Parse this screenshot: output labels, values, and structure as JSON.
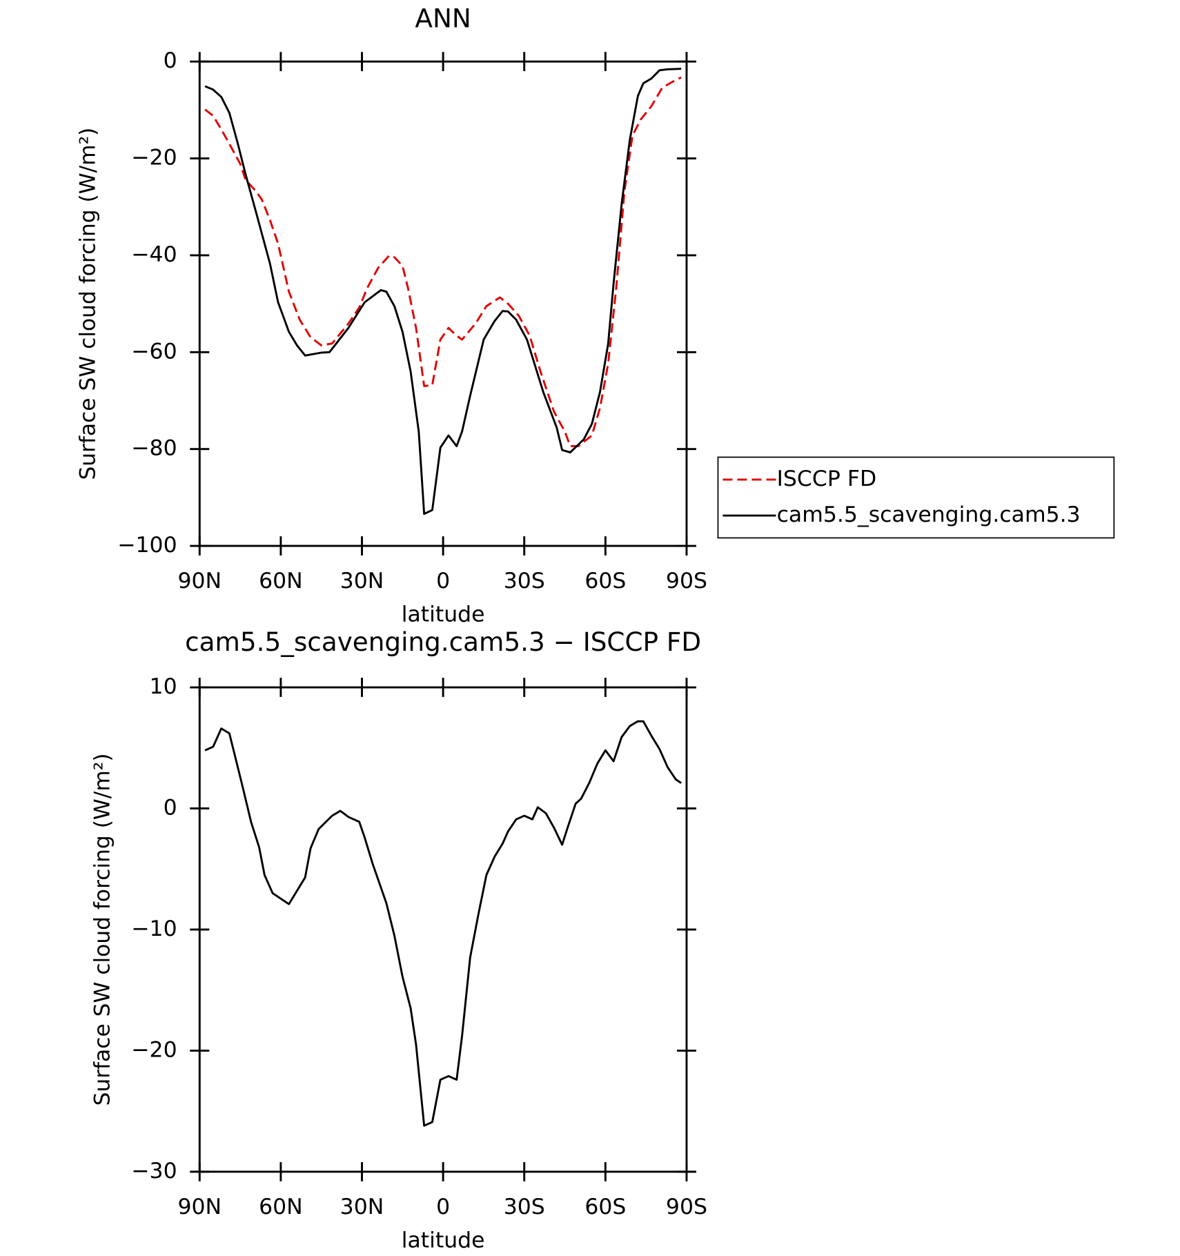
{
  "chart_data": [
    {
      "type": "line",
      "title": "ANN",
      "xlabel": "latitude",
      "ylabel": "Surface SW cloud forcing (W/m²)",
      "xlim": [
        90,
        -90
      ],
      "xticks": [
        {
          "value": 90,
          "label": "90N"
        },
        {
          "value": 60,
          "label": "60N"
        },
        {
          "value": 30,
          "label": "30N"
        },
        0,
        {
          "value": -30,
          "label": "30S"
        },
        {
          "value": -60,
          "label": "60S"
        },
        {
          "value": -90,
          "label": "90S"
        }
      ],
      "ylim": [
        -100,
        0
      ],
      "yticks": [
        0,
        {
          "value": -20,
          "label": "−20"
        },
        {
          "value": -40,
          "label": "−40"
        },
        {
          "value": -60,
          "label": "−60"
        },
        {
          "value": -80,
          "label": "−80"
        },
        {
          "value": -100,
          "label": "−100"
        }
      ],
      "legend": "outside right",
      "series": [
        {
          "name": "ISCCP FD",
          "color": "#e00000",
          "style": "dashed",
          "x": [
            88,
            85,
            82,
            79,
            75,
            73,
            69,
            67,
            64,
            61,
            57,
            53,
            49,
            45,
            41,
            35,
            31,
            28,
            24,
            20,
            18,
            15,
            13,
            10,
            7,
            4,
            1,
            -2,
            -5,
            -7,
            -12,
            -16,
            -21,
            -24,
            -28,
            -32,
            -36,
            -41,
            -45,
            -47,
            -50,
            -55,
            -58,
            -61,
            -64,
            -67,
            -70,
            -73,
            -77,
            -81,
            -86,
            -88
          ],
          "values": [
            -9.9,
            -11.2,
            -14,
            -17,
            -21.1,
            -24.4,
            -26.9,
            -28.5,
            -32.7,
            -37.6,
            -47.5,
            -53.3,
            -56.9,
            -58.6,
            -58.2,
            -54.1,
            -50.8,
            -46.7,
            -42.6,
            -40.1,
            -40.4,
            -42.2,
            -46.7,
            -55,
            -67,
            -66.8,
            -57.4,
            -55,
            -56.6,
            -57.4,
            -54.1,
            -50.5,
            -48.7,
            -50,
            -52.5,
            -56.6,
            -64,
            -72.3,
            -76.4,
            -79.4,
            -79.4,
            -77.2,
            -71.5,
            -62.4,
            -46.7,
            -26.9,
            -15.3,
            -12,
            -9.2,
            -5.4,
            -3.8,
            -3.3
          ]
        },
        {
          "name": "cam5.5_scavenging.cam5.3",
          "color": "#000000",
          "style": "solid",
          "x": [
            88,
            85,
            82,
            79,
            76,
            73,
            69,
            64,
            61,
            57,
            54,
            51,
            45,
            42,
            35,
            29,
            23,
            21,
            18,
            15,
            12,
            9,
            7,
            4,
            1,
            -2,
            -5,
            -7,
            -10,
            -15,
            -19,
            -22,
            -24,
            -27,
            -31,
            -37,
            -42,
            -44,
            -47,
            -52,
            -55,
            -58,
            -61,
            -63,
            -66,
            -69,
            -72,
            -74,
            -77,
            -80,
            -83,
            -88
          ],
          "values": [
            -5.1,
            -5.8,
            -7.3,
            -10.6,
            -16.7,
            -23.3,
            -31.4,
            -41.7,
            -49.7,
            -55.8,
            -58.6,
            -60.7,
            -60.1,
            -60,
            -55,
            -49.7,
            -47.2,
            -47.5,
            -50.5,
            -55.8,
            -64,
            -76.4,
            -93.4,
            -92.6,
            -79.7,
            -77.2,
            -79.4,
            -76.4,
            -69,
            -57.4,
            -53.6,
            -51.5,
            -51.6,
            -53.3,
            -57.4,
            -68.2,
            -75.6,
            -80.2,
            -80.7,
            -78,
            -74.8,
            -68.2,
            -58.3,
            -45.9,
            -29.4,
            -16.2,
            -7.1,
            -4.5,
            -3.5,
            -1.8,
            -1.6,
            -1.5
          ]
        }
      ]
    },
    {
      "type": "line",
      "title": "cam5.5_scavenging.cam5.3 − ISCCP FD",
      "xlabel": "latitude",
      "ylabel": "Surface SW cloud forcing (W/m²)",
      "xlim": [
        90,
        -90
      ],
      "xticks": [
        {
          "value": 90,
          "label": "90N"
        },
        {
          "value": 60,
          "label": "60N"
        },
        {
          "value": 30,
          "label": "30N"
        },
        0,
        {
          "value": -30,
          "label": "30S"
        },
        {
          "value": -60,
          "label": "60S"
        },
        {
          "value": -90,
          "label": "90S"
        }
      ],
      "ylim": [
        -30,
        10
      ],
      "yticks": [
        10,
        0,
        {
          "value": -10,
          "label": "−10"
        },
        {
          "value": -20,
          "label": "−20"
        },
        {
          "value": -30,
          "label": "−30"
        }
      ],
      "series": [
        {
          "color": "#000000",
          "style": "solid",
          "x": [
            88,
            85,
            82,
            79,
            77,
            74,
            71,
            68,
            66,
            63,
            57,
            54,
            51,
            49,
            46,
            41,
            38,
            35,
            31,
            29,
            26,
            21,
            18,
            15,
            12,
            10,
            7,
            4,
            1,
            -2,
            -5,
            -7,
            -10,
            -13,
            -16,
            -19,
            -22,
            -24,
            -27,
            -30,
            -33,
            -35,
            -38,
            -41,
            -44,
            -46,
            -49,
            -51,
            -54,
            -57,
            -60,
            -63,
            -66,
            -69,
            -72,
            -74,
            -77,
            -80,
            -83,
            -86,
            -88
          ],
          "values": [
            4.8,
            5.1,
            6.6,
            6.2,
            4.4,
            1.7,
            -1.1,
            -3.2,
            -5.5,
            -7,
            -7.9,
            -6.8,
            -5.7,
            -3.3,
            -1.7,
            -0.6,
            -0.2,
            -0.7,
            -1.1,
            -2.4,
            -4.6,
            -7.8,
            -10.5,
            -13.9,
            -16.5,
            -19.5,
            -26.2,
            -25.9,
            -22.4,
            -22.1,
            -22.4,
            -18.8,
            -12.3,
            -8.8,
            -5.5,
            -4,
            -2.9,
            -1.9,
            -0.9,
            -0.6,
            -0.9,
            0.1,
            -0.4,
            -1.6,
            -3,
            -1.6,
            0.4,
            0.8,
            2.1,
            3.7,
            4.8,
            3.9,
            5.9,
            6.8,
            7.2,
            7.2,
            6,
            4.9,
            3.4,
            2.4,
            2.1
          ]
        }
      ]
    }
  ]
}
